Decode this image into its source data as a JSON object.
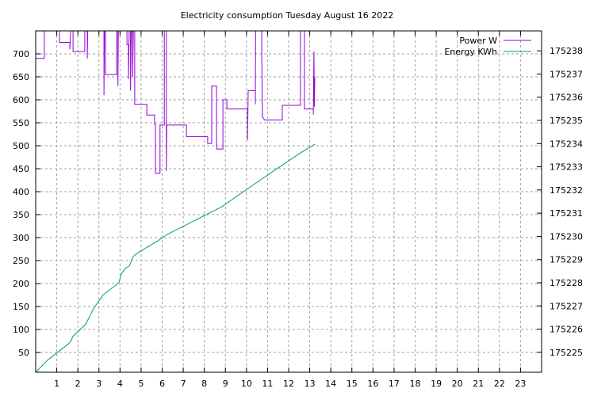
{
  "chart_data": {
    "type": "line",
    "title": "Electricity consumption Tuesday August 16 2022",
    "xlabel": "",
    "ylabel": "",
    "xlim": [
      0,
      24
    ],
    "x_ticks": [
      1,
      2,
      3,
      4,
      5,
      6,
      7,
      8,
      9,
      10,
      11,
      12,
      13,
      14,
      15,
      16,
      17,
      18,
      19,
      20,
      21,
      22,
      23
    ],
    "ylim": [
      7,
      750
    ],
    "y_ticks": [
      50,
      100,
      150,
      200,
      250,
      300,
      350,
      400,
      450,
      500,
      550,
      600,
      650,
      700
    ],
    "y2lim": [
      175224.14,
      175238.86
    ],
    "y2_ticks": [
      175225,
      175226,
      175227,
      175228,
      175229,
      175230,
      175231,
      175232,
      175233,
      175234,
      175235,
      175236,
      175237,
      175238
    ],
    "grid": true,
    "legend_position": "top-right",
    "series": [
      {
        "name": "Power W",
        "axis": "y",
        "color": "#9400d3",
        "style": "steps",
        "points": [
          [
            0,
            690
          ],
          [
            0.41,
            690
          ],
          [
            0.41,
            800
          ],
          [
            1.13,
            800
          ],
          [
            1.13,
            725
          ],
          [
            1.62,
            725
          ],
          [
            1.62,
            710
          ],
          [
            1.7,
            800
          ],
          [
            1.77,
            800
          ],
          [
            1.77,
            705
          ],
          [
            2.33,
            705
          ],
          [
            2.33,
            800
          ],
          [
            2.45,
            800
          ],
          [
            2.45,
            690
          ],
          [
            2.48,
            800
          ],
          [
            3.24,
            800
          ],
          [
            3.24,
            610
          ],
          [
            3.27,
            800
          ],
          [
            3.31,
            800
          ],
          [
            3.31,
            655
          ],
          [
            3.84,
            655
          ],
          [
            3.84,
            800
          ],
          [
            3.9,
            800
          ],
          [
            3.9,
            630
          ],
          [
            3.93,
            800
          ],
          [
            4.33,
            800
          ],
          [
            4.33,
            720
          ],
          [
            4.4,
            720
          ],
          [
            4.4,
            645
          ],
          [
            4.45,
            800
          ],
          [
            4.5,
            800
          ],
          [
            4.5,
            620
          ],
          [
            4.55,
            800
          ],
          [
            4.6,
            800
          ],
          [
            4.6,
            650
          ],
          [
            4.65,
            800
          ],
          [
            4.7,
            800
          ],
          [
            4.7,
            590
          ],
          [
            5.27,
            590
          ],
          [
            5.27,
            567
          ],
          [
            5.64,
            567
          ],
          [
            5.64,
            547
          ],
          [
            5.68,
            547
          ],
          [
            5.68,
            440
          ],
          [
            5.9,
            440
          ],
          [
            5.9,
            545
          ],
          [
            6.1,
            545
          ],
          [
            6.1,
            800
          ],
          [
            6.2,
            800
          ],
          [
            6.2,
            445
          ],
          [
            6.22,
            545
          ],
          [
            7.15,
            545
          ],
          [
            7.15,
            520
          ],
          [
            8.16,
            520
          ],
          [
            8.16,
            505
          ],
          [
            8.35,
            505
          ],
          [
            8.35,
            630
          ],
          [
            8.58,
            630
          ],
          [
            8.58,
            493
          ],
          [
            8.88,
            493
          ],
          [
            8.88,
            600
          ],
          [
            9.07,
            600
          ],
          [
            9.07,
            580
          ],
          [
            10.05,
            580
          ],
          [
            10.05,
            512
          ],
          [
            10.08,
            620
          ],
          [
            10.42,
            620
          ],
          [
            10.42,
            590
          ],
          [
            10.44,
            800
          ],
          [
            10.72,
            800
          ],
          [
            10.72,
            710
          ],
          [
            10.76,
            563
          ],
          [
            10.86,
            556
          ],
          [
            11.7,
            556
          ],
          [
            11.7,
            588
          ],
          [
            12.56,
            588
          ],
          [
            12.56,
            800
          ],
          [
            12.75,
            800
          ],
          [
            12.75,
            580
          ],
          [
            13.17,
            580
          ],
          [
            13.17,
            568
          ],
          [
            13.2,
            705
          ],
          [
            13.22,
            585
          ],
          [
            13.24,
            650
          ]
        ]
      },
      {
        "name": "Energy KWh",
        "axis": "y2",
        "color": "#009e73",
        "style": "lines",
        "points": [
          [
            0,
            175224.14
          ],
          [
            0.56,
            175224.66
          ],
          [
            1.62,
            175225.41
          ],
          [
            1.77,
            175225.69
          ],
          [
            2.37,
            175226.21
          ],
          [
            2.56,
            175226.55
          ],
          [
            2.75,
            175226.9
          ],
          [
            2.94,
            175227.14
          ],
          [
            3.2,
            175227.48
          ],
          [
            3.95,
            175228.0
          ],
          [
            4.06,
            175228.38
          ],
          [
            4.25,
            175228.62
          ],
          [
            4.44,
            175228.72
          ],
          [
            4.63,
            175229.14
          ],
          [
            4.89,
            175229.31
          ],
          [
            5.83,
            175229.83
          ],
          [
            6.21,
            175230.07
          ],
          [
            8.84,
            175231.28
          ],
          [
            9.97,
            175232.0
          ],
          [
            11.47,
            175232.93
          ],
          [
            12.6,
            175233.62
          ],
          [
            13.24,
            175233.97
          ]
        ]
      }
    ]
  }
}
